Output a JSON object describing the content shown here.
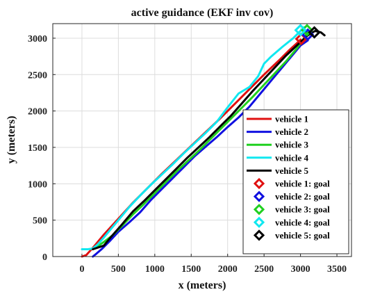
{
  "chart_data": {
    "type": "line",
    "title": "active guidance (EKF inv cov)",
    "xlabel": "x (meters)",
    "ylabel": "y (meters)",
    "xlim": [
      -400,
      3700
    ],
    "ylim": [
      0,
      3200
    ],
    "xticks": [
      0,
      500,
      1000,
      1500,
      2000,
      2500,
      3000,
      3500
    ],
    "yticks": [
      0,
      500,
      1000,
      1500,
      2000,
      2500,
      3000
    ],
    "grid": true,
    "legend_position": "lower-right",
    "series": [
      {
        "name": "vehicle 1",
        "color": "#e01010",
        "points": [
          [
            0,
            0
          ],
          [
            60,
            20
          ],
          [
            150,
            120
          ],
          [
            300,
            300
          ],
          [
            500,
            520
          ],
          [
            700,
            740
          ],
          [
            900,
            940
          ],
          [
            1100,
            1140
          ],
          [
            1300,
            1330
          ],
          [
            1500,
            1520
          ],
          [
            1700,
            1710
          ],
          [
            1900,
            1900
          ],
          [
            2100,
            2100
          ],
          [
            2300,
            2300
          ],
          [
            2500,
            2500
          ],
          [
            2700,
            2690
          ],
          [
            2850,
            2840
          ],
          [
            2950,
            2930
          ],
          [
            3000,
            2980
          ]
        ]
      },
      {
        "name": "vehicle 2",
        "color": "#1010e0",
        "points": [
          [
            150,
            0
          ],
          [
            200,
            40
          ],
          [
            280,
            110
          ],
          [
            380,
            210
          ],
          [
            500,
            340
          ],
          [
            650,
            470
          ],
          [
            800,
            610
          ],
          [
            950,
            780
          ],
          [
            1100,
            930
          ],
          [
            1250,
            1080
          ],
          [
            1400,
            1230
          ],
          [
            1550,
            1380
          ],
          [
            1700,
            1510
          ],
          [
            1850,
            1640
          ],
          [
            2000,
            1780
          ],
          [
            2150,
            1910
          ],
          [
            2300,
            2060
          ],
          [
            2450,
            2240
          ],
          [
            2600,
            2420
          ],
          [
            2750,
            2600
          ],
          [
            2900,
            2780
          ],
          [
            3000,
            2900
          ],
          [
            3100,
            2970
          ]
        ]
      },
      {
        "name": "vehicle 3",
        "color": "#20d020",
        "points": [
          [
            150,
            100
          ],
          [
            200,
            130
          ],
          [
            300,
            200
          ],
          [
            420,
            290
          ],
          [
            550,
            420
          ],
          [
            700,
            580
          ],
          [
            850,
            720
          ],
          [
            1000,
            870
          ],
          [
            1150,
            1020
          ],
          [
            1300,
            1170
          ],
          [
            1450,
            1310
          ],
          [
            1600,
            1450
          ],
          [
            1750,
            1600
          ],
          [
            1900,
            1750
          ],
          [
            2050,
            1900
          ],
          [
            2200,
            2050
          ],
          [
            2350,
            2200
          ],
          [
            2500,
            2360
          ],
          [
            2650,
            2520
          ],
          [
            2800,
            2680
          ],
          [
            2950,
            2860
          ],
          [
            3050,
            3000
          ],
          [
            3100,
            3080
          ]
        ]
      },
      {
        "name": "vehicle 4",
        "color": "#10e8f0",
        "points": [
          [
            0,
            100
          ],
          [
            80,
            100
          ],
          [
            150,
            110
          ],
          [
            220,
            170
          ],
          [
            300,
            260
          ],
          [
            400,
            380
          ],
          [
            500,
            500
          ],
          [
            650,
            680
          ],
          [
            800,
            840
          ],
          [
            950,
            990
          ],
          [
            1100,
            1130
          ],
          [
            1250,
            1270
          ],
          [
            1400,
            1420
          ],
          [
            1550,
            1560
          ],
          [
            1700,
            1700
          ],
          [
            1850,
            1850
          ],
          [
            2000,
            2050
          ],
          [
            2150,
            2240
          ],
          [
            2300,
            2330
          ],
          [
            2420,
            2480
          ],
          [
            2500,
            2650
          ],
          [
            2600,
            2750
          ],
          [
            2750,
            2880
          ],
          [
            2900,
            3000
          ],
          [
            3000,
            3100
          ],
          [
            3050,
            3150
          ]
        ]
      },
      {
        "name": "vehicle 5",
        "color": "#000000",
        "points": [
          [
            150,
            100
          ],
          [
            300,
            150
          ],
          [
            400,
            270
          ],
          [
            550,
            440
          ],
          [
            700,
            620
          ],
          [
            850,
            760
          ],
          [
            1000,
            910
          ],
          [
            1150,
            1060
          ],
          [
            1300,
            1210
          ],
          [
            1450,
            1360
          ],
          [
            1600,
            1500
          ],
          [
            1750,
            1640
          ],
          [
            1900,
            1790
          ],
          [
            2050,
            1940
          ],
          [
            2200,
            2110
          ],
          [
            2350,
            2280
          ],
          [
            2500,
            2440
          ],
          [
            2650,
            2600
          ],
          [
            2800,
            2760
          ],
          [
            2950,
            2900
          ],
          [
            3100,
            3040
          ],
          [
            3200,
            3100
          ],
          [
            3280,
            3080
          ],
          [
            3330,
            3040
          ]
        ]
      }
    ],
    "goals": [
      {
        "name": "vehicle 1: goal",
        "color": "#e01010",
        "x": 3010,
        "y": 2990
      },
      {
        "name": "vehicle 2: goal",
        "color": "#1010e0",
        "x": 3100,
        "y": 3050
      },
      {
        "name": "vehicle 3: goal",
        "color": "#20d020",
        "x": 3090,
        "y": 3110
      },
      {
        "name": "vehicle 4: goal",
        "color": "#10e8f0",
        "x": 3000,
        "y": 3110
      },
      {
        "name": "vehicle 5: goal",
        "color": "#000000",
        "x": 3190,
        "y": 3080
      }
    ]
  }
}
